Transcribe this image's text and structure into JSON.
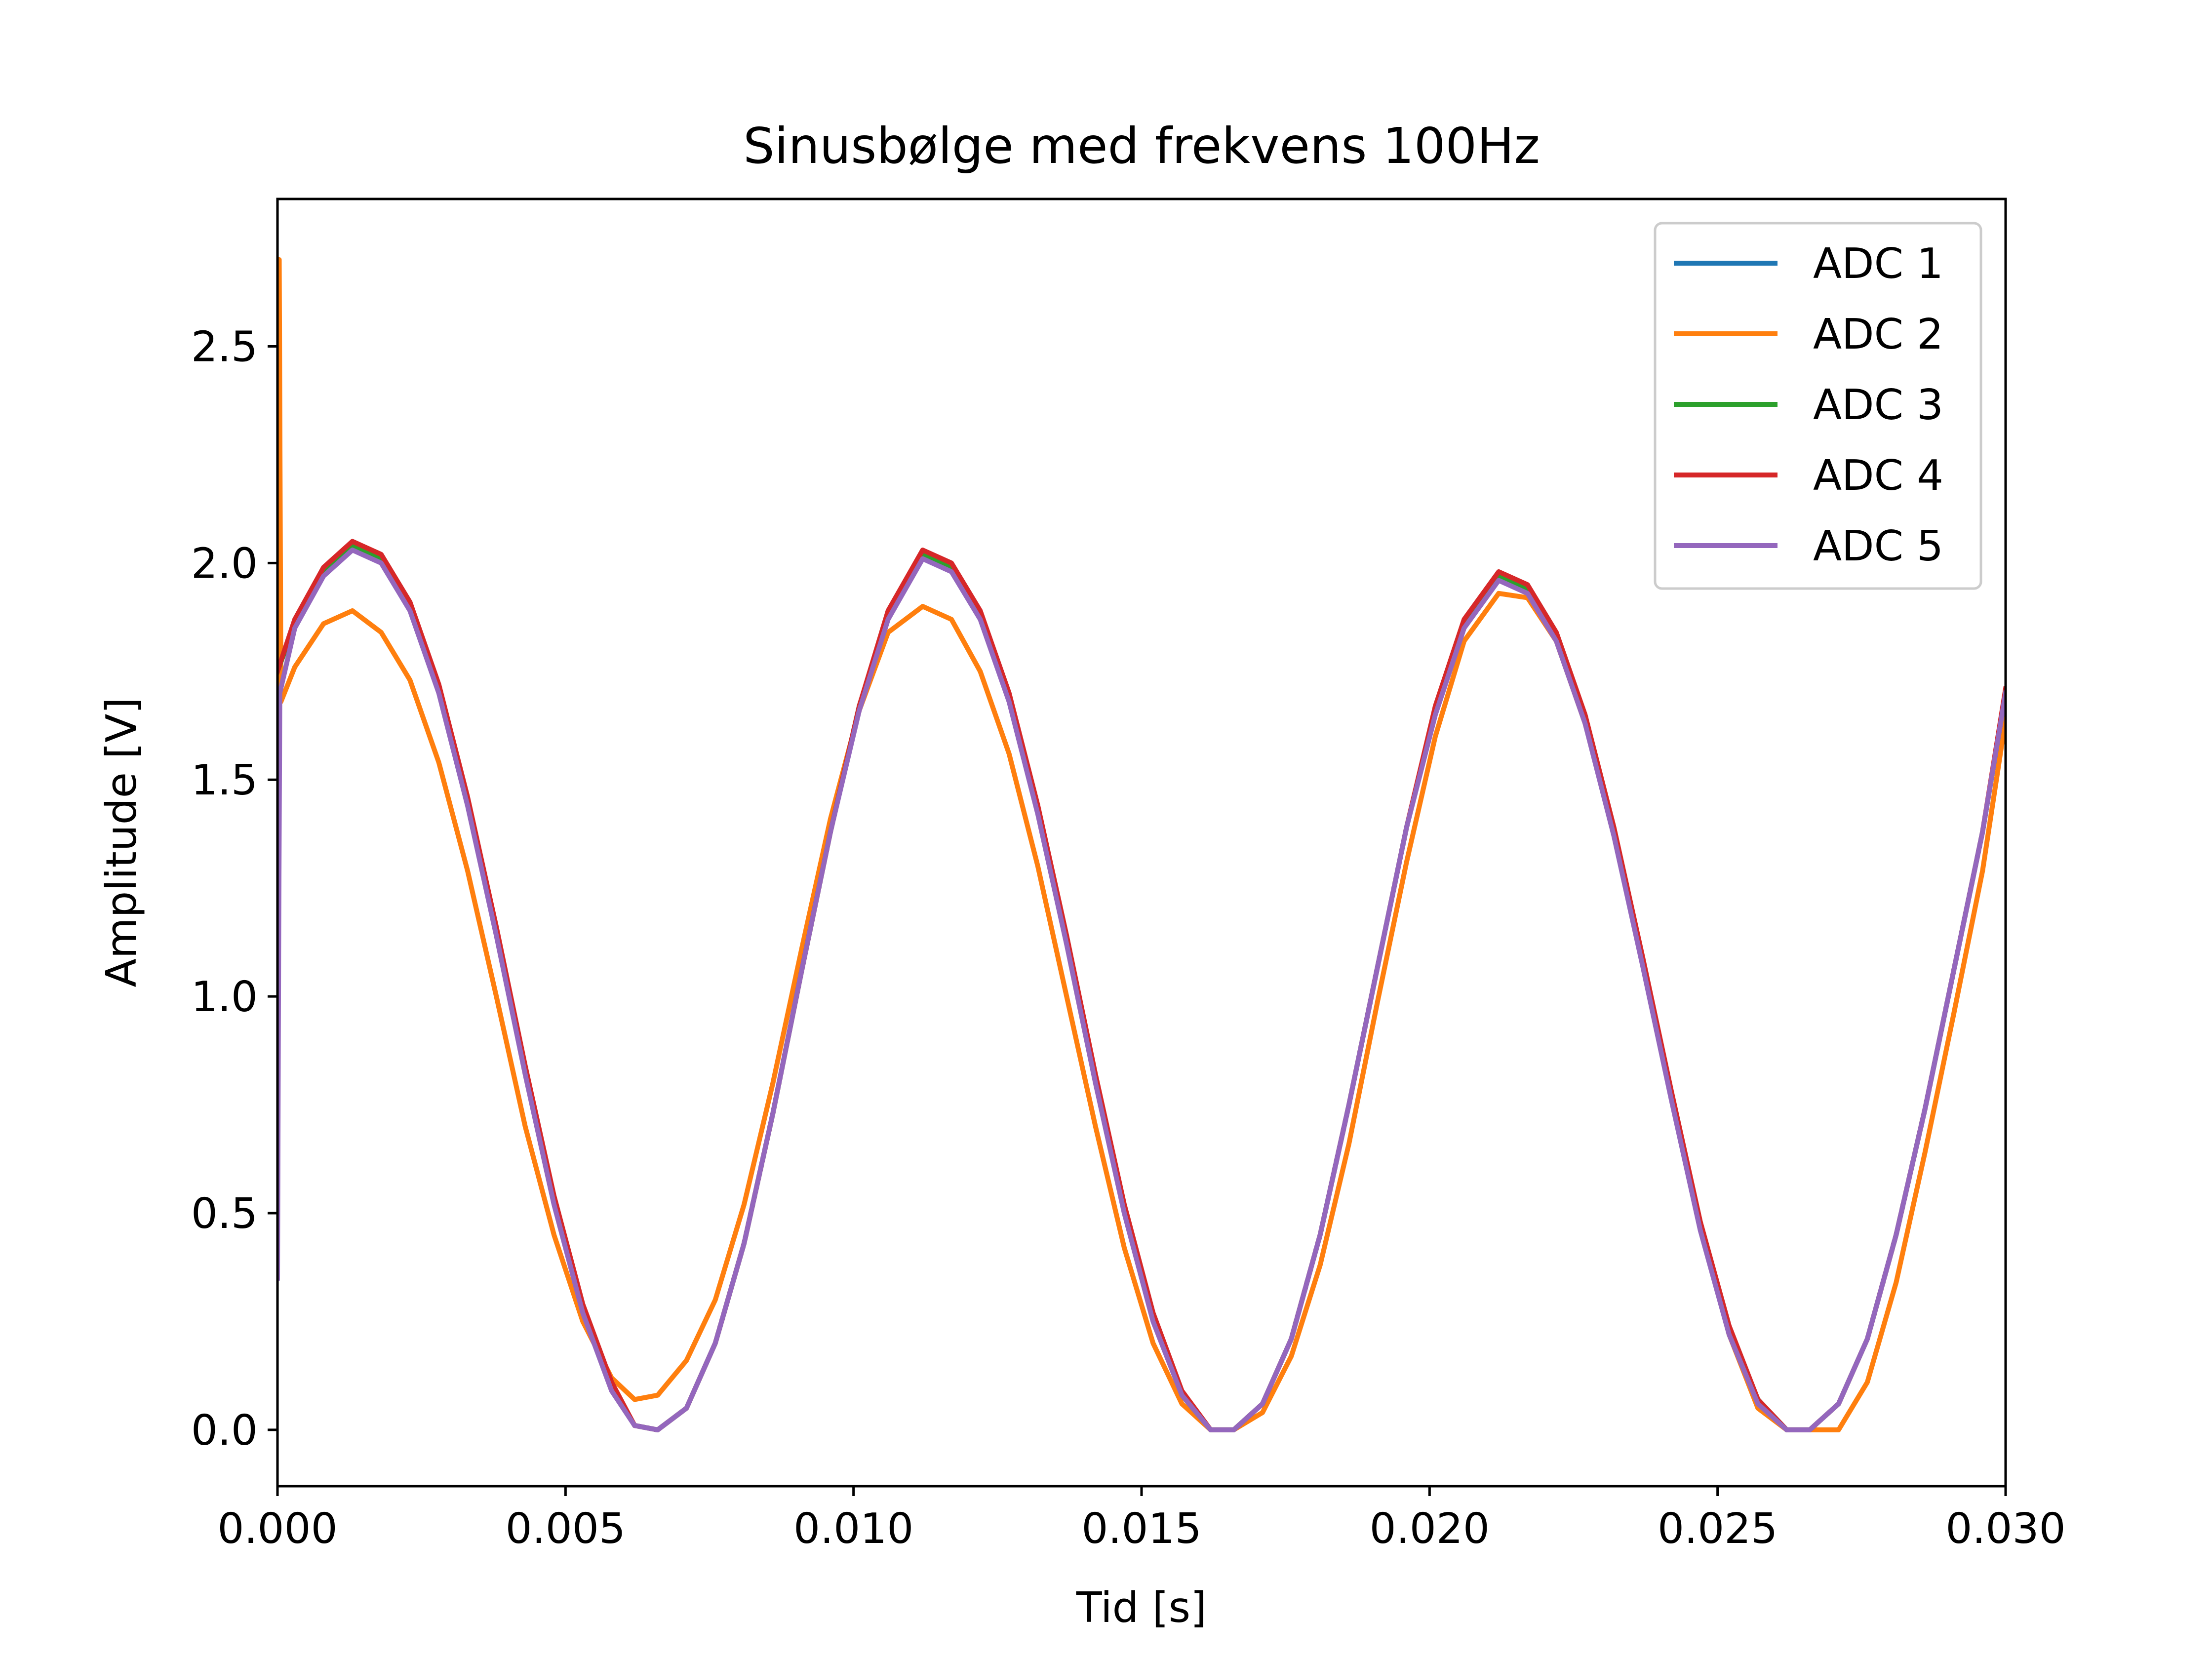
{
  "chart_data": {
    "type": "line",
    "title": "Sinusbølge med frekvens 100Hz",
    "xlabel": "Tid [s]",
    "ylabel": "Amplitude [V]",
    "xlim": [
      0.0,
      0.03
    ],
    "ylim": [
      -0.13,
      2.84
    ],
    "xticks": [
      0.0,
      0.005,
      0.01,
      0.015,
      0.02,
      0.025,
      0.03
    ],
    "xtick_labels": [
      "0.000",
      "0.005",
      "0.010",
      "0.015",
      "0.020",
      "0.025",
      "0.030"
    ],
    "yticks": [
      0.0,
      0.5,
      1.0,
      1.5,
      2.0,
      2.5
    ],
    "ytick_labels": [
      "0.0",
      "0.5",
      "1.0",
      "1.5",
      "2.0",
      "2.5"
    ],
    "grid": false,
    "legend_position": "upper right",
    "series": [
      {
        "name": "ADC 1",
        "color": "#1f77b4",
        "x": [
          0.0,
          0.0003,
          0.0008,
          0.0013,
          0.0018,
          0.0023,
          0.0028,
          0.0033,
          0.0038,
          0.0043,
          0.0048,
          0.0053,
          0.0058,
          0.0062,
          0.0066,
          0.0071,
          0.0076,
          0.0081,
          0.0086,
          0.0091,
          0.0096,
          0.0101,
          0.0106,
          0.0112,
          0.0117,
          0.0122,
          0.0127,
          0.0132,
          0.0137,
          0.0142,
          0.0147,
          0.0152,
          0.0157,
          0.0162,
          0.0166,
          0.0171,
          0.0176,
          0.0181,
          0.0186,
          0.0191,
          0.0196,
          0.0201,
          0.0206,
          0.0212,
          0.0217,
          0.0222,
          0.0227,
          0.0232,
          0.0237,
          0.0242,
          0.0247,
          0.0252,
          0.0257,
          0.0262,
          0.0266,
          0.0271,
          0.0276,
          0.0281,
          0.0286,
          0.0291,
          0.0296,
          0.03
        ],
        "y": [
          1.75,
          1.86,
          1.98,
          2.04,
          2.01,
          1.9,
          1.71,
          1.45,
          1.15,
          0.83,
          0.53,
          0.28,
          0.1,
          0.01,
          0.0,
          0.05,
          0.2,
          0.43,
          0.73,
          1.06,
          1.38,
          1.67,
          1.88,
          2.02,
          1.99,
          1.88,
          1.69,
          1.43,
          1.13,
          0.81,
          0.51,
          0.26,
          0.08,
          0.0,
          0.0,
          0.06,
          0.21,
          0.45,
          0.75,
          1.07,
          1.39,
          1.66,
          1.86,
          1.97,
          1.94,
          1.83,
          1.64,
          1.38,
          1.08,
          0.77,
          0.47,
          0.23,
          0.07,
          0.0,
          0.0,
          0.06,
          0.21,
          0.45,
          0.74,
          1.06,
          1.38,
          1.7
        ]
      },
      {
        "name": "ADC 2",
        "color": "#ff7f0e",
        "x": [
          0.0,
          3e-05,
          6e-05,
          0.0003,
          0.0008,
          0.0013,
          0.0018,
          0.0023,
          0.0028,
          0.0033,
          0.0038,
          0.0043,
          0.0048,
          0.0053,
          0.0058,
          0.0062,
          0.0066,
          0.0071,
          0.0076,
          0.0081,
          0.0086,
          0.0091,
          0.0096,
          0.0101,
          0.0106,
          0.0112,
          0.0117,
          0.0122,
          0.0127,
          0.0132,
          0.0137,
          0.0142,
          0.0147,
          0.0152,
          0.0157,
          0.0162,
          0.0166,
          0.0171,
          0.0176,
          0.0181,
          0.0186,
          0.0191,
          0.0196,
          0.0201,
          0.0206,
          0.0212,
          0.0217,
          0.0222,
          0.0227,
          0.0232,
          0.0237,
          0.0242,
          0.0247,
          0.0252,
          0.0257,
          0.0262,
          0.0266,
          0.0271,
          0.0276,
          0.0281,
          0.0286,
          0.0291,
          0.0296,
          0.03
        ],
        "y": [
          0.9,
          2.7,
          1.68,
          1.76,
          1.86,
          1.89,
          1.84,
          1.73,
          1.54,
          1.29,
          1.0,
          0.7,
          0.45,
          0.25,
          0.12,
          0.07,
          0.08,
          0.16,
          0.3,
          0.52,
          0.8,
          1.11,
          1.41,
          1.66,
          1.84,
          1.9,
          1.87,
          1.75,
          1.56,
          1.3,
          1.0,
          0.7,
          0.42,
          0.2,
          0.06,
          0.0,
          0.0,
          0.04,
          0.17,
          0.38,
          0.66,
          0.99,
          1.31,
          1.6,
          1.82,
          1.93,
          1.92,
          1.82,
          1.63,
          1.38,
          1.08,
          0.77,
          0.47,
          0.22,
          0.05,
          0.0,
          0.0,
          0.0,
          0.11,
          0.34,
          0.64,
          0.96,
          1.29,
          1.64
        ]
      },
      {
        "name": "ADC 3",
        "color": "#2ca02c",
        "x": [
          0.0,
          0.0003,
          0.0008,
          0.0013,
          0.0018,
          0.0023,
          0.0028,
          0.0033,
          0.0038,
          0.0043,
          0.0048,
          0.0053,
          0.0058,
          0.0062,
          0.0066,
          0.0071,
          0.0076,
          0.0081,
          0.0086,
          0.0091,
          0.0096,
          0.0101,
          0.0106,
          0.0112,
          0.0117,
          0.0122,
          0.0127,
          0.0132,
          0.0137,
          0.0142,
          0.0147,
          0.0152,
          0.0157,
          0.0162,
          0.0166,
          0.0171,
          0.0176,
          0.0181,
          0.0186,
          0.0191,
          0.0196,
          0.0201,
          0.0206,
          0.0212,
          0.0217,
          0.0222,
          0.0227,
          0.0232,
          0.0237,
          0.0242,
          0.0247,
          0.0252,
          0.0257,
          0.0262,
          0.0266,
          0.0271,
          0.0276,
          0.0281,
          0.0286,
          0.0291,
          0.0296,
          0.03
        ],
        "y": [
          1.75,
          1.86,
          1.98,
          2.04,
          2.01,
          1.9,
          1.71,
          1.45,
          1.15,
          0.83,
          0.53,
          0.28,
          0.1,
          0.01,
          0.0,
          0.05,
          0.2,
          0.43,
          0.73,
          1.06,
          1.38,
          1.67,
          1.88,
          2.02,
          1.99,
          1.88,
          1.69,
          1.43,
          1.13,
          0.81,
          0.51,
          0.26,
          0.08,
          0.0,
          0.0,
          0.06,
          0.21,
          0.45,
          0.75,
          1.07,
          1.39,
          1.66,
          1.86,
          1.97,
          1.94,
          1.83,
          1.64,
          1.38,
          1.08,
          0.77,
          0.47,
          0.23,
          0.07,
          0.0,
          0.0,
          0.06,
          0.21,
          0.45,
          0.74,
          1.06,
          1.38,
          1.7
        ]
      },
      {
        "name": "ADC 4",
        "color": "#d62728",
        "x": [
          0.0,
          0.0003,
          0.0008,
          0.0013,
          0.0018,
          0.0023,
          0.0028,
          0.0033,
          0.0038,
          0.0043,
          0.0048,
          0.0053,
          0.0058,
          0.0062,
          0.0066,
          0.0071,
          0.0076,
          0.0081,
          0.0086,
          0.0091,
          0.0096,
          0.0101,
          0.0106,
          0.0112,
          0.0117,
          0.0122,
          0.0127,
          0.0132,
          0.0137,
          0.0142,
          0.0147,
          0.0152,
          0.0157,
          0.0162,
          0.0166,
          0.0171,
          0.0176,
          0.0181,
          0.0186,
          0.0191,
          0.0196,
          0.0201,
          0.0206,
          0.0212,
          0.0217,
          0.0222,
          0.0227,
          0.0232,
          0.0237,
          0.0242,
          0.0247,
          0.0252,
          0.0257,
          0.0262,
          0.0266,
          0.0271,
          0.0276,
          0.0281,
          0.0286,
          0.0291,
          0.0296,
          0.03
        ],
        "y": [
          1.75,
          1.87,
          1.99,
          2.05,
          2.02,
          1.91,
          1.72,
          1.46,
          1.16,
          0.84,
          0.54,
          0.29,
          0.11,
          0.01,
          0.0,
          0.05,
          0.2,
          0.43,
          0.73,
          1.06,
          1.38,
          1.67,
          1.89,
          2.03,
          2.0,
          1.89,
          1.7,
          1.44,
          1.14,
          0.82,
          0.52,
          0.27,
          0.09,
          0.0,
          0.0,
          0.06,
          0.21,
          0.45,
          0.75,
          1.07,
          1.39,
          1.67,
          1.87,
          1.98,
          1.95,
          1.84,
          1.65,
          1.39,
          1.09,
          0.78,
          0.48,
          0.24,
          0.07,
          0.0,
          0.0,
          0.06,
          0.21,
          0.45,
          0.74,
          1.06,
          1.38,
          1.71
        ]
      },
      {
        "name": "ADC 5",
        "color": "#9467bd",
        "x": [
          0.0,
          2e-05,
          4e-05,
          0.0003,
          0.0008,
          0.0013,
          0.0018,
          0.0023,
          0.0028,
          0.0033,
          0.0038,
          0.0043,
          0.0048,
          0.0053,
          0.0058,
          0.0062,
          0.0066,
          0.0071,
          0.0076,
          0.0081,
          0.0086,
          0.0091,
          0.0096,
          0.0101,
          0.0106,
          0.0112,
          0.0117,
          0.0122,
          0.0127,
          0.0132,
          0.0137,
          0.0142,
          0.0147,
          0.0152,
          0.0157,
          0.0162,
          0.0166,
          0.0171,
          0.0176,
          0.0181,
          0.0186,
          0.0191,
          0.0196,
          0.0201,
          0.0206,
          0.0212,
          0.0217,
          0.0222,
          0.0227,
          0.0232,
          0.0237,
          0.0242,
          0.0247,
          0.0252,
          0.0257,
          0.0262,
          0.0266,
          0.0271,
          0.0276,
          0.0281,
          0.0286,
          0.0291,
          0.0296,
          0.03
        ],
        "y": [
          0.35,
          1.1,
          1.7,
          1.85,
          1.97,
          2.03,
          2.0,
          1.89,
          1.7,
          1.44,
          1.14,
          0.82,
          0.52,
          0.27,
          0.09,
          0.01,
          0.0,
          0.05,
          0.2,
          0.43,
          0.73,
          1.06,
          1.38,
          1.66,
          1.87,
          2.01,
          1.98,
          1.87,
          1.68,
          1.42,
          1.12,
          0.8,
          0.5,
          0.25,
          0.08,
          0.0,
          0.0,
          0.06,
          0.21,
          0.45,
          0.75,
          1.07,
          1.39,
          1.65,
          1.85,
          1.96,
          1.93,
          1.82,
          1.63,
          1.37,
          1.07,
          0.76,
          0.46,
          0.22,
          0.06,
          0.0,
          0.0,
          0.06,
          0.21,
          0.45,
          0.74,
          1.06,
          1.38,
          1.7
        ]
      }
    ]
  }
}
